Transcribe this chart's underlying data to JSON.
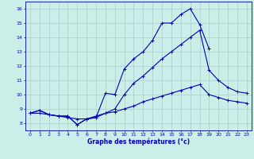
{
  "xlabel": "Graphe des températures (°c)",
  "xlim": [
    -0.5,
    23.5
  ],
  "ylim": [
    7.5,
    16.5
  ],
  "xticks": [
    0,
    1,
    2,
    3,
    4,
    5,
    6,
    7,
    8,
    9,
    10,
    11,
    12,
    13,
    14,
    15,
    16,
    17,
    18,
    19,
    20,
    21,
    22,
    23
  ],
  "yticks": [
    8,
    9,
    10,
    11,
    12,
    13,
    14,
    15,
    16
  ],
  "background_color": "#cceee8",
  "grid_color": "#aacccc",
  "line_color": "#0000bb",
  "lines": [
    {
      "x": [
        0,
        1,
        2,
        3,
        4,
        5,
        6,
        7,
        8,
        9,
        10,
        11,
        12,
        13,
        14,
        15,
        16,
        17,
        18,
        19
      ],
      "y": [
        8.7,
        8.9,
        8.6,
        8.5,
        8.5,
        7.9,
        8.3,
        8.4,
        10.1,
        10.0,
        11.8,
        12.5,
        13.0,
        13.8,
        15.0,
        15.0,
        15.6,
        16.0,
        14.9,
        13.2
      ]
    },
    {
      "x": [
        0,
        1,
        2,
        3,
        4,
        5,
        6,
        7,
        8,
        9,
        10,
        11,
        12,
        13,
        14,
        15,
        16,
        17,
        18,
        19,
        20,
        21,
        22,
        23
      ],
      "y": [
        8.7,
        8.9,
        8.6,
        8.5,
        8.5,
        7.9,
        8.3,
        8.4,
        8.7,
        9.0,
        10.0,
        10.8,
        11.3,
        11.9,
        12.5,
        13.0,
        13.5,
        14.0,
        14.5,
        11.7,
        11.0,
        10.5,
        10.2,
        10.1
      ]
    },
    {
      "x": [
        0,
        1,
        2,
        3,
        4,
        5,
        6,
        7,
        8,
        9,
        10,
        11,
        12,
        13,
        14,
        15,
        16,
        17,
        18,
        19,
        20,
        21,
        22,
        23
      ],
      "y": [
        8.7,
        8.7,
        8.6,
        8.5,
        8.4,
        8.3,
        8.3,
        8.5,
        8.7,
        8.8,
        9.0,
        9.2,
        9.5,
        9.7,
        9.9,
        10.1,
        10.3,
        10.5,
        10.7,
        10.0,
        9.8,
        9.6,
        9.5,
        9.4
      ]
    }
  ]
}
